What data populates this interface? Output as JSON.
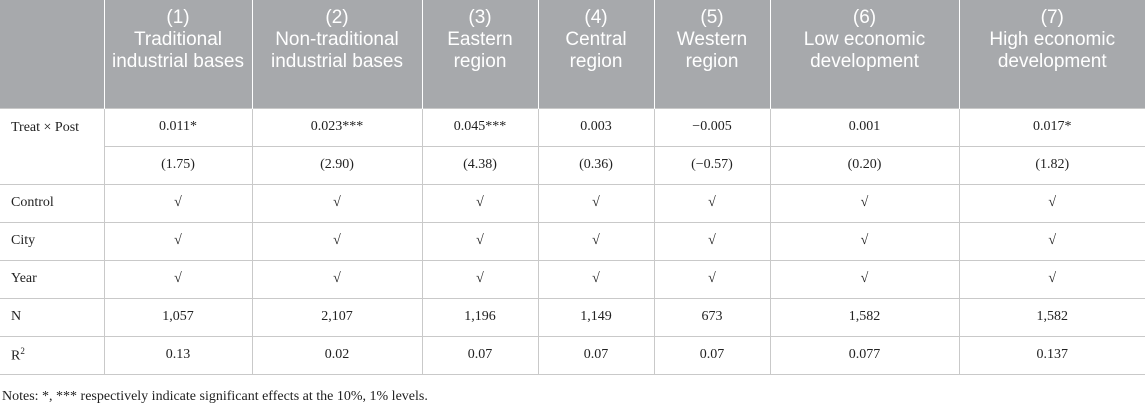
{
  "header": {
    "corner": "",
    "columns": [
      {
        "num": "(1)",
        "label": "Traditional industrial bases"
      },
      {
        "num": "(2)",
        "label": "Non-traditional industrial bases"
      },
      {
        "num": "(3)",
        "label": "Eastern region"
      },
      {
        "num": "(4)",
        "label": "Central region"
      },
      {
        "num": "(5)",
        "label": "Western region"
      },
      {
        "num": "(6)",
        "label": "Low economic development"
      },
      {
        "num": "(7)",
        "label": "High economic development"
      }
    ]
  },
  "rows": {
    "treat_post": {
      "label": "Treat × Post",
      "coef": [
        "0.011*",
        "0.023***",
        "0.045***",
        "0.003",
        "−0.005",
        "0.001",
        "0.017*"
      ],
      "tstat": [
        "(1.75)",
        "(2.90)",
        "(4.38)",
        "(0.36)",
        "(−0.57)",
        "(0.20)",
        "(1.82)"
      ]
    },
    "control": {
      "label": "Control",
      "values": [
        "√",
        "√",
        "√",
        "√",
        "√",
        "√",
        "√"
      ]
    },
    "city": {
      "label": "City",
      "values": [
        "√",
        "√",
        "√",
        "√",
        "√",
        "√",
        "√"
      ]
    },
    "year": {
      "label": "Year",
      "values": [
        "√",
        "√",
        "√",
        "√",
        "√",
        "√",
        "√"
      ]
    },
    "n": {
      "label": "N",
      "values": [
        "1,057",
        "2,107",
        "1,196",
        "1,149",
        "673",
        "1,582",
        "1,582"
      ]
    },
    "r2": {
      "label": "R",
      "label_sup": "2",
      "values": [
        "0.13",
        "0.02",
        "0.07",
        "0.07",
        "0.07",
        "0.077",
        "0.137"
      ]
    }
  },
  "notes": "Notes: *, *** respectively indicate significant effects at the 10%, 1% levels."
}
